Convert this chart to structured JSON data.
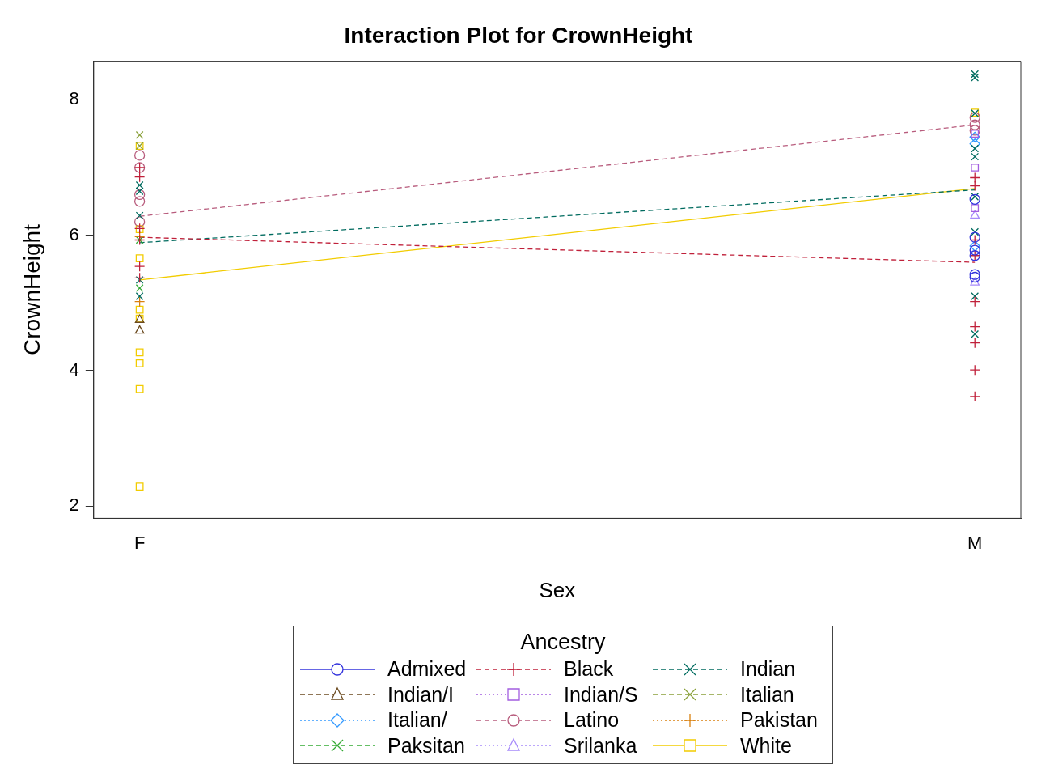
{
  "chart_data": {
    "type": "scatter",
    "title": "Interaction Plot for CrownHeight",
    "xlabel": "Sex",
    "ylabel": "CrownHeight",
    "legend_title": "Ancestry",
    "categories": [
      "F",
      "M"
    ],
    "ylim": [
      1.82,
      8.57
    ],
    "yticks": [
      2,
      4,
      6,
      8
    ],
    "grid": false,
    "legend": "bottom",
    "series": [
      {
        "name": "Admixed",
        "color": "#3333dd",
        "marker": "circle",
        "line_style": "solid",
        "x": [
          "M",
          "M",
          "M",
          "M",
          "M",
          "M"
        ],
        "values": [
          6.53,
          5.97,
          5.78,
          5.7,
          5.42,
          5.38
        ]
      },
      {
        "name": "Black",
        "color": "#c0203a",
        "marker": "plus",
        "line_style": "dashed",
        "x": [
          "F",
          "F",
          "F",
          "F",
          "F",
          "F",
          "M",
          "M",
          "M",
          "M",
          "M",
          "M",
          "M",
          "M",
          "M"
        ],
        "values": [
          7.0,
          6.86,
          6.1,
          5.93,
          5.54,
          5.37,
          6.85,
          6.73,
          5.93,
          5.7,
          5.02,
          4.65,
          4.41,
          4.01,
          3.62
        ]
      },
      {
        "name": "Indian",
        "color": "#006b5f",
        "marker": "cross",
        "line_style": "dashed",
        "x": [
          "F",
          "F",
          "F",
          "F",
          "F",
          "M",
          "M",
          "M",
          "M",
          "M",
          "M",
          "M",
          "M",
          "M"
        ],
        "values": [
          6.74,
          6.65,
          6.29,
          5.34,
          5.1,
          8.38,
          8.33,
          7.8,
          7.28,
          7.16,
          6.57,
          6.05,
          5.1,
          4.54
        ]
      },
      {
        "name": "Indian/I",
        "color": "#6b4a1f",
        "marker": "triangle",
        "line_style": "dashed",
        "x": [
          "F",
          "F"
        ],
        "values": [
          4.75,
          4.59
        ]
      },
      {
        "name": "Indian/S",
        "color": "#a35ee0",
        "marker": "square",
        "line_style": "dotted",
        "x": [
          "M",
          "M",
          "M"
        ],
        "values": [
          7.5,
          7.0,
          6.4
        ]
      },
      {
        "name": "Italian",
        "color": "#8aa03a",
        "marker": "cross",
        "line_style": "dashed",
        "x": [
          "F",
          "F"
        ],
        "values": [
          7.48,
          7.32
        ]
      },
      {
        "name": "Italian/",
        "color": "#3399ff",
        "marker": "diamond",
        "line_style": "dotted",
        "x": [
          "M",
          "M",
          "M"
        ],
        "values": [
          7.45,
          7.35,
          5.84
        ]
      },
      {
        "name": "Latino",
        "color": "#b85c7d",
        "marker": "circle",
        "line_style": "dashed",
        "x": [
          "F",
          "F",
          "F",
          "F",
          "F",
          "M",
          "M",
          "M"
        ],
        "values": [
          7.18,
          7.0,
          6.6,
          6.5,
          6.2,
          7.74,
          7.63,
          7.55
        ]
      },
      {
        "name": "Pakistan",
        "color": "#d9800f",
        "marker": "plus",
        "line_style": "dotted",
        "x": [
          "F",
          "F"
        ],
        "values": [
          5.98,
          5.02
        ]
      },
      {
        "name": "Paksitan",
        "color": "#33aa33",
        "marker": "cross",
        "line_style": "dashed",
        "x": [
          "F",
          "F"
        ],
        "values": [
          5.93,
          5.22
        ]
      },
      {
        "name": "Srilanka",
        "color": "#a78bfa",
        "marker": "triangle",
        "line_style": "dotted",
        "x": [
          "M",
          "M"
        ],
        "values": [
          6.29,
          5.3
        ]
      },
      {
        "name": "White",
        "color": "#f2cc00",
        "marker": "square",
        "line_style": "solid",
        "x": [
          "F",
          "F",
          "F",
          "F",
          "F",
          "F",
          "F",
          "F",
          "F",
          "M"
        ],
        "values": [
          7.32,
          6.09,
          5.66,
          4.9,
          4.77,
          4.27,
          4.11,
          3.73,
          2.29,
          7.81
        ]
      },
      {
        "type": "line",
        "color": "#b85c7d",
        "marker": "none",
        "line_style": "dashed",
        "x": [
          "F",
          "M"
        ],
        "values": [
          6.28,
          7.63
        ]
      },
      {
        "type": "line",
        "color": "#c0203a",
        "marker": "none",
        "line_style": "dashed",
        "x": [
          "F",
          "M"
        ],
        "values": [
          5.97,
          5.6
        ]
      },
      {
        "type": "line",
        "color": "#006b5f",
        "marker": "none",
        "line_style": "dashed",
        "x": [
          "F",
          "M"
        ],
        "values": [
          5.89,
          6.67
        ]
      },
      {
        "type": "line",
        "color": "#f2cc00",
        "marker": "none",
        "line_style": "solid",
        "x": [
          "F",
          "M"
        ],
        "values": [
          5.34,
          6.69
        ]
      }
    ]
  }
}
